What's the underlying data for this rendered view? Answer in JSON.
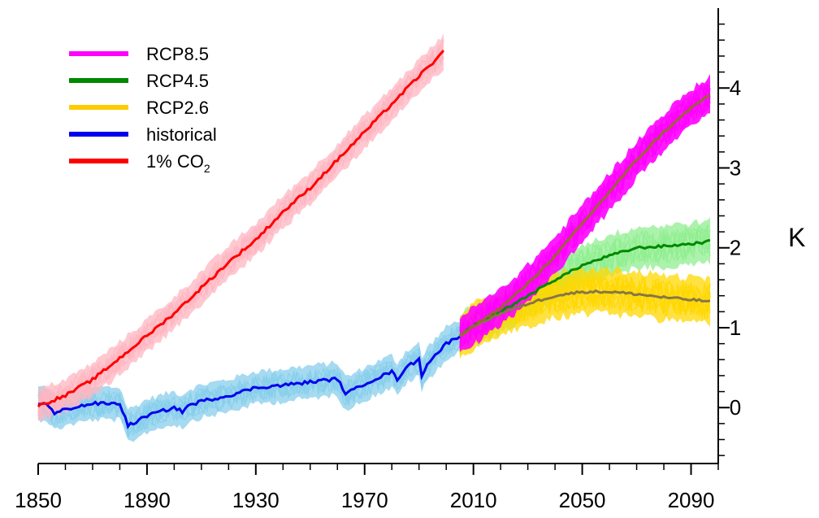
{
  "chart_data": {
    "type": "line",
    "title": "",
    "xlabel": "",
    "ylabel": "K",
    "xlim": [
      1850,
      2100
    ],
    "ylim": [
      -0.7,
      5.0
    ],
    "x_ticks": [
      1850,
      1890,
      1930,
      1970,
      2010,
      2050,
      2090
    ],
    "y_ticks": [
      0,
      1,
      2,
      3,
      4
    ],
    "y_axis_side": "right",
    "grid": false,
    "legend_position": "top-left",
    "series": [
      {
        "name": "RCP8.5",
        "color": "#ff00ff",
        "band_color": "#ff00ff",
        "mean_color": "#996633",
        "x": [
          2005,
          2010,
          2020,
          2030,
          2040,
          2050,
          2060,
          2070,
          2080,
          2090,
          2097
        ],
        "y": [
          0.9,
          1.02,
          1.25,
          1.55,
          1.9,
          2.3,
          2.7,
          3.1,
          3.45,
          3.75,
          3.92
        ],
        "spread": 0.25
      },
      {
        "name": "RCP4.5",
        "color": "#008800",
        "band_color": "#90ee90",
        "mean_color": "#008800",
        "x": [
          2005,
          2010,
          2020,
          2030,
          2040,
          2050,
          2060,
          2070,
          2080,
          2090,
          2097
        ],
        "y": [
          0.9,
          1.02,
          1.2,
          1.4,
          1.6,
          1.78,
          1.9,
          2.0,
          2.02,
          2.05,
          2.08
        ],
        "spread": 0.28
      },
      {
        "name": "RCP2.6",
        "color": "#ffcc00",
        "band_color": "#ffd700",
        "mean_color": "#887744",
        "x": [
          2005,
          2010,
          2020,
          2030,
          2040,
          2050,
          2060,
          2070,
          2080,
          2090,
          2097
        ],
        "y": [
          0.9,
          1.02,
          1.18,
          1.3,
          1.4,
          1.45,
          1.45,
          1.42,
          1.38,
          1.35,
          1.33
        ],
        "spread": 0.3
      },
      {
        "name": "historical",
        "color": "#0000ee",
        "band_color": "#87ceeb",
        "mean_color": "#0000ee",
        "x": [
          1850,
          1853,
          1856,
          1860,
          1870,
          1880,
          1883,
          1885,
          1890,
          1900,
          1903,
          1905,
          1910,
          1920,
          1930,
          1940,
          1950,
          1960,
          1963,
          1966,
          1970,
          1980,
          1982,
          1985,
          1990,
          1991,
          1993,
          2000,
          2005
        ],
        "y": [
          0.05,
          0.06,
          -0.08,
          -0.02,
          0.05,
          0.05,
          -0.22,
          -0.2,
          -0.1,
          0.0,
          -0.05,
          0.02,
          0.08,
          0.15,
          0.25,
          0.28,
          0.32,
          0.36,
          0.18,
          0.22,
          0.3,
          0.45,
          0.35,
          0.5,
          0.6,
          0.4,
          0.55,
          0.8,
          0.9
        ],
        "spread": 0.22
      },
      {
        "name": "1% CO₂",
        "color": "#ff0000",
        "band_color": "#ffb6c1",
        "mean_color": "#ff0000",
        "x": [
          1850,
          1860,
          1870,
          1880,
          1890,
          1900,
          1910,
          1920,
          1930,
          1940,
          1950,
          1960,
          1970,
          1980,
          1990,
          1999
        ],
        "y": [
          0.02,
          0.15,
          0.35,
          0.62,
          0.9,
          1.18,
          1.5,
          1.82,
          2.1,
          2.45,
          2.75,
          3.1,
          3.45,
          3.8,
          4.15,
          4.45
        ],
        "spread": 0.22
      }
    ]
  },
  "legend": {
    "items": [
      {
        "label": "RCP8.5",
        "color": "#ff00ff"
      },
      {
        "label": "RCP4.5",
        "color": "#008800"
      },
      {
        "label": "RCP2.6",
        "color": "#ffcc00"
      },
      {
        "label": "historical",
        "color": "#0000ee"
      },
      {
        "label": "1% CO",
        "sub": "2",
        "color": "#ff0000"
      }
    ]
  }
}
